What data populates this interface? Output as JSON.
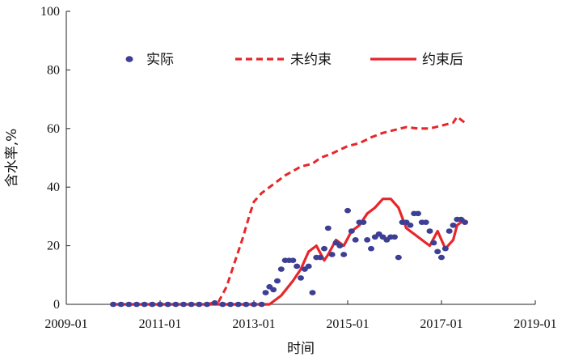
{
  "chart_data": {
    "type": "line",
    "xlabel": "时间",
    "ylabel": "含水率,%",
    "x_ticks": [
      "2009-01",
      "2011-01",
      "2013-01",
      "2015-01",
      "2017-01",
      "2019-01"
    ],
    "y_ticks": [
      "0",
      "20",
      "40",
      "60",
      "80",
      "100"
    ],
    "xlim": [
      "2009-01",
      "2019-01"
    ],
    "ylim": [
      0,
      100
    ],
    "grid": false,
    "legend_placement": "top",
    "series": [
      {
        "name": "实际",
        "style": "scatter",
        "color": "#3d3f94",
        "points": [
          [
            "2010-01",
            0
          ],
          [
            "2010-03",
            0
          ],
          [
            "2010-05",
            0
          ],
          [
            "2010-07",
            0
          ],
          [
            "2010-09",
            0
          ],
          [
            "2010-11",
            0
          ],
          [
            "2011-01",
            0
          ],
          [
            "2011-03",
            0
          ],
          [
            "2011-05",
            0
          ],
          [
            "2011-07",
            0
          ],
          [
            "2011-09",
            0
          ],
          [
            "2011-11",
            0
          ],
          [
            "2012-01",
            0
          ],
          [
            "2012-03",
            0.5
          ],
          [
            "2012-05",
            0
          ],
          [
            "2012-07",
            0
          ],
          [
            "2012-09",
            0
          ],
          [
            "2012-11",
            0
          ],
          [
            "2013-01",
            0
          ],
          [
            "2013-03",
            0
          ],
          [
            "2013-04",
            4
          ],
          [
            "2013-05",
            6
          ],
          [
            "2013-06",
            5
          ],
          [
            "2013-07",
            8
          ],
          [
            "2013-08",
            12
          ],
          [
            "2013-09",
            15
          ],
          [
            "2013-10",
            15
          ],
          [
            "2013-11",
            15
          ],
          [
            "2013-12",
            13
          ],
          [
            "2014-01",
            9
          ],
          [
            "2014-02",
            12
          ],
          [
            "2014-03",
            13
          ],
          [
            "2014-04",
            4
          ],
          [
            "2014-05",
            16
          ],
          [
            "2014-06",
            16
          ],
          [
            "2014-07",
            19
          ],
          [
            "2014-08",
            26
          ],
          [
            "2014-09",
            17
          ],
          [
            "2014-10",
            21
          ],
          [
            "2014-11",
            20
          ],
          [
            "2014-12",
            17
          ],
          [
            "2015-01",
            32
          ],
          [
            "2015-02",
            25
          ],
          [
            "2015-03",
            22
          ],
          [
            "2015-04",
            28
          ],
          [
            "2015-05",
            28
          ],
          [
            "2015-06",
            22
          ],
          [
            "2015-07",
            19
          ],
          [
            "2015-08",
            23
          ],
          [
            "2015-09",
            24
          ],
          [
            "2015-10",
            23
          ],
          [
            "2015-11",
            22
          ],
          [
            "2015-12",
            23
          ],
          [
            "2016-01",
            23
          ],
          [
            "2016-02",
            16
          ],
          [
            "2016-03",
            28
          ],
          [
            "2016-04",
            28
          ],
          [
            "2016-05",
            27
          ],
          [
            "2016-06",
            31
          ],
          [
            "2016-07",
            31
          ],
          [
            "2016-08",
            28
          ],
          [
            "2016-09",
            28
          ],
          [
            "2016-10",
            25
          ],
          [
            "2016-11",
            21
          ],
          [
            "2016-12",
            18
          ],
          [
            "2017-01",
            16
          ],
          [
            "2017-02",
            19
          ],
          [
            "2017-03",
            25
          ],
          [
            "2017-04",
            27
          ],
          [
            "2017-05",
            29
          ],
          [
            "2017-06",
            29
          ],
          [
            "2017-07",
            28
          ]
        ]
      },
      {
        "name": "未约束",
        "style": "dashed",
        "color": "#e8262a",
        "points": [
          [
            "2010-01",
            0
          ],
          [
            "2011-01",
            0
          ],
          [
            "2012-01",
            0
          ],
          [
            "2012-04",
            1
          ],
          [
            "2012-06",
            6
          ],
          [
            "2012-08",
            14
          ],
          [
            "2012-10",
            22
          ],
          [
            "2012-12",
            31
          ],
          [
            "2013-01",
            35
          ],
          [
            "2013-03",
            38
          ],
          [
            "2013-06",
            41
          ],
          [
            "2013-09",
            44
          ],
          [
            "2014-01",
            47
          ],
          [
            "2014-04",
            48
          ],
          [
            "2014-06",
            50
          ],
          [
            "2014-09",
            51.5
          ],
          [
            "2015-01",
            54
          ],
          [
            "2015-04",
            55
          ],
          [
            "2015-07",
            57
          ],
          [
            "2015-10",
            58.5
          ],
          [
            "2016-01",
            59.5
          ],
          [
            "2016-04",
            60.5
          ],
          [
            "2016-07",
            60
          ],
          [
            "2016-10",
            60
          ],
          [
            "2017-01",
            61
          ],
          [
            "2017-04",
            62
          ],
          [
            "2017-05",
            64
          ],
          [
            "2017-07",
            62
          ]
        ]
      },
      {
        "name": "约束后",
        "style": "solid",
        "color": "#e8262a",
        "points": [
          [
            "2010-01",
            0
          ],
          [
            "2011-01",
            0
          ],
          [
            "2012-01",
            0
          ],
          [
            "2013-01",
            0
          ],
          [
            "2013-05",
            0
          ],
          [
            "2013-08",
            3
          ],
          [
            "2013-11",
            8
          ],
          [
            "2014-01",
            12
          ],
          [
            "2014-03",
            18
          ],
          [
            "2014-05",
            20
          ],
          [
            "2014-07",
            15
          ],
          [
            "2014-08",
            17
          ],
          [
            "2014-10",
            22
          ],
          [
            "2014-12",
            20
          ],
          [
            "2015-02",
            25
          ],
          [
            "2015-04",
            27
          ],
          [
            "2015-06",
            31
          ],
          [
            "2015-08",
            33
          ],
          [
            "2015-10",
            36
          ],
          [
            "2015-12",
            36
          ],
          [
            "2016-02",
            33
          ],
          [
            "2016-04",
            26
          ],
          [
            "2016-06",
            24
          ],
          [
            "2016-08",
            22
          ],
          [
            "2016-10",
            20
          ],
          [
            "2016-12",
            25
          ],
          [
            "2017-02",
            19
          ],
          [
            "2017-04",
            22
          ],
          [
            "2017-05",
            27
          ],
          [
            "2017-07",
            29
          ]
        ]
      }
    ]
  }
}
